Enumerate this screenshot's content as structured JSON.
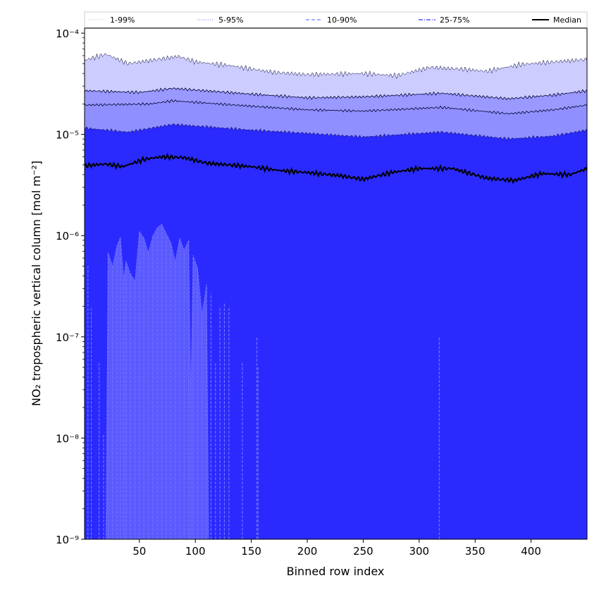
{
  "chart_data": {
    "type": "area",
    "title": "",
    "xlabel": "Binned row index",
    "ylabel": "NO₂ tropospheric vertical column [mol m⁻²]",
    "xscale": "linear",
    "yscale": "log",
    "xlim": [
      1,
      450
    ],
    "ylim": [
      1e-09,
      0.000112
    ],
    "xticks": [
      50,
      100,
      150,
      200,
      250,
      300,
      350,
      400
    ],
    "xtick_labels": [
      "50",
      "100",
      "150",
      "200",
      "250",
      "300",
      "350",
      "400"
    ],
    "yticks": [
      1e-09,
      1e-08,
      1e-07,
      1e-06,
      1e-05,
      0.0001
    ],
    "ytick_labels": [
      "10⁻⁹",
      "10⁻⁸",
      "10⁻⁷",
      "10⁻⁶",
      "10⁻⁵",
      "10⁻⁴"
    ],
    "legend_position": "top (above plot, horizontal)",
    "legend": [
      {
        "label": "1-99%",
        "color": "#ccccff",
        "style": "dotted"
      },
      {
        "label": "5-95%",
        "color": "#9999ff",
        "style": "dotted"
      },
      {
        "label": "10-90%",
        "color": "#8f8fff",
        "style": "dashed"
      },
      {
        "label": "25-75%",
        "color": "#5555ff",
        "style": "dashdot"
      },
      {
        "label": "Median",
        "color": "#000000",
        "style": "solid"
      }
    ],
    "bands": [
      {
        "name": "1-99%",
        "color": "#ccccff",
        "upper": [
          [
            1,
            5.4e-05
          ],
          [
            20,
            6.2e-05
          ],
          [
            40,
            5e-05
          ],
          [
            85,
            5.9e-05
          ],
          [
            100,
            5.2e-05
          ],
          [
            130,
            4.8e-05
          ],
          [
            170,
            4.1e-05
          ],
          [
            200,
            3.9e-05
          ],
          [
            250,
            4e-05
          ],
          [
            280,
            3.8e-05
          ],
          [
            310,
            4.6e-05
          ],
          [
            340,
            4.4e-05
          ],
          [
            360,
            4.2e-05
          ],
          [
            390,
            4.9e-05
          ],
          [
            420,
            5.2e-05
          ],
          [
            450,
            5.5e-05
          ]
        ]
      },
      {
        "name": "5-95%",
        "color": "#9999ff",
        "upper": [
          [
            1,
            2.7e-05
          ],
          [
            50,
            2.6e-05
          ],
          [
            80,
            2.85e-05
          ],
          [
            150,
            2.5e-05
          ],
          [
            200,
            2.3e-05
          ],
          [
            250,
            2.35e-05
          ],
          [
            320,
            2.55e-05
          ],
          [
            380,
            2.25e-05
          ],
          [
            420,
            2.45e-05
          ],
          [
            450,
            2.7e-05
          ]
        ]
      },
      {
        "name": "10-90%",
        "color": "#8f8fff",
        "upper": [
          [
            1,
            1.95e-05
          ],
          [
            60,
            2e-05
          ],
          [
            80,
            2.15e-05
          ],
          [
            150,
            1.9e-05
          ],
          [
            200,
            1.75e-05
          ],
          [
            250,
            1.7e-05
          ],
          [
            320,
            1.85e-05
          ],
          [
            380,
            1.6e-05
          ],
          [
            420,
            1.75e-05
          ],
          [
            450,
            1.95e-05
          ]
        ]
      },
      {
        "name": "25-75%",
        "color": "#5555ff",
        "upper": [
          [
            1,
            1.15e-05
          ],
          [
            40,
            1.05e-05
          ],
          [
            80,
            1.25e-05
          ],
          [
            150,
            1.1e-05
          ],
          [
            200,
            1.02e-05
          ],
          [
            250,
            9.4e-06
          ],
          [
            320,
            1.05e-05
          ],
          [
            380,
            9e-06
          ],
          [
            420,
            9.6e-06
          ],
          [
            450,
            1.1e-05
          ]
        ]
      }
    ],
    "median": [
      [
        1,
        4.9e-06
      ],
      [
        20,
        5.1e-06
      ],
      [
        35,
        4.8e-06
      ],
      [
        55,
        5.7e-06
      ],
      [
        70,
        6e-06
      ],
      [
        90,
        5.9e-06
      ],
      [
        110,
        5.2e-06
      ],
      [
        150,
        4.8e-06
      ],
      [
        175,
        4.4e-06
      ],
      [
        200,
        4.2e-06
      ],
      [
        230,
        3.9e-06
      ],
      [
        250,
        3.6e-06
      ],
      [
        275,
        4.2e-06
      ],
      [
        300,
        4.6e-06
      ],
      [
        330,
        4.6e-06
      ],
      [
        360,
        3.7e-06
      ],
      [
        385,
        3.5e-06
      ],
      [
        410,
        4.1e-06
      ],
      [
        435,
        4e-06
      ],
      [
        450,
        4.6e-06
      ]
    ],
    "lower_band_25": {
      "color": "#5555ff",
      "points": [
        [
          4,
          5e-07
        ],
        [
          7,
          2e-07
        ],
        [
          14,
          5.5e-08
        ],
        [
          18,
          1.1e-08
        ],
        [
          22,
          6.8e-07
        ],
        [
          26,
          5e-07
        ],
        [
          30,
          8e-07
        ],
        [
          33,
          9.6e-07
        ],
        [
          36,
          3.8e-07
        ],
        [
          38,
          5.6e-07
        ],
        [
          42,
          4.2e-07
        ],
        [
          46,
          3.6e-07
        ],
        [
          50,
          1.1e-06
        ],
        [
          54,
          9.5e-07
        ],
        [
          58,
          6.8e-07
        ],
        [
          62,
          1e-06
        ],
        [
          66,
          1.2e-06
        ],
        [
          70,
          1.3e-06
        ],
        [
          74,
          1.05e-06
        ],
        [
          78,
          8.6e-07
        ],
        [
          82,
          5.6e-07
        ],
        [
          86,
          9.4e-07
        ],
        [
          90,
          7.2e-07
        ],
        [
          94,
          9e-07
        ],
        [
          96,
          3e-08
        ],
        [
          98,
          6.4e-07
        ],
        [
          102,
          4.8e-07
        ],
        [
          106,
          1.7e-07
        ],
        [
          110,
          3.3e-07
        ],
        [
          114,
          2.7e-07
        ],
        [
          118,
          5.5e-08
        ],
        [
          122,
          2e-07
        ],
        [
          126,
          2.2e-07
        ],
        [
          130,
          2e-07
        ],
        [
          142,
          5.5e-08
        ],
        [
          155,
          1e-07
        ],
        [
          156,
          5e-08
        ],
        [
          318,
          1e-07
        ]
      ]
    }
  }
}
